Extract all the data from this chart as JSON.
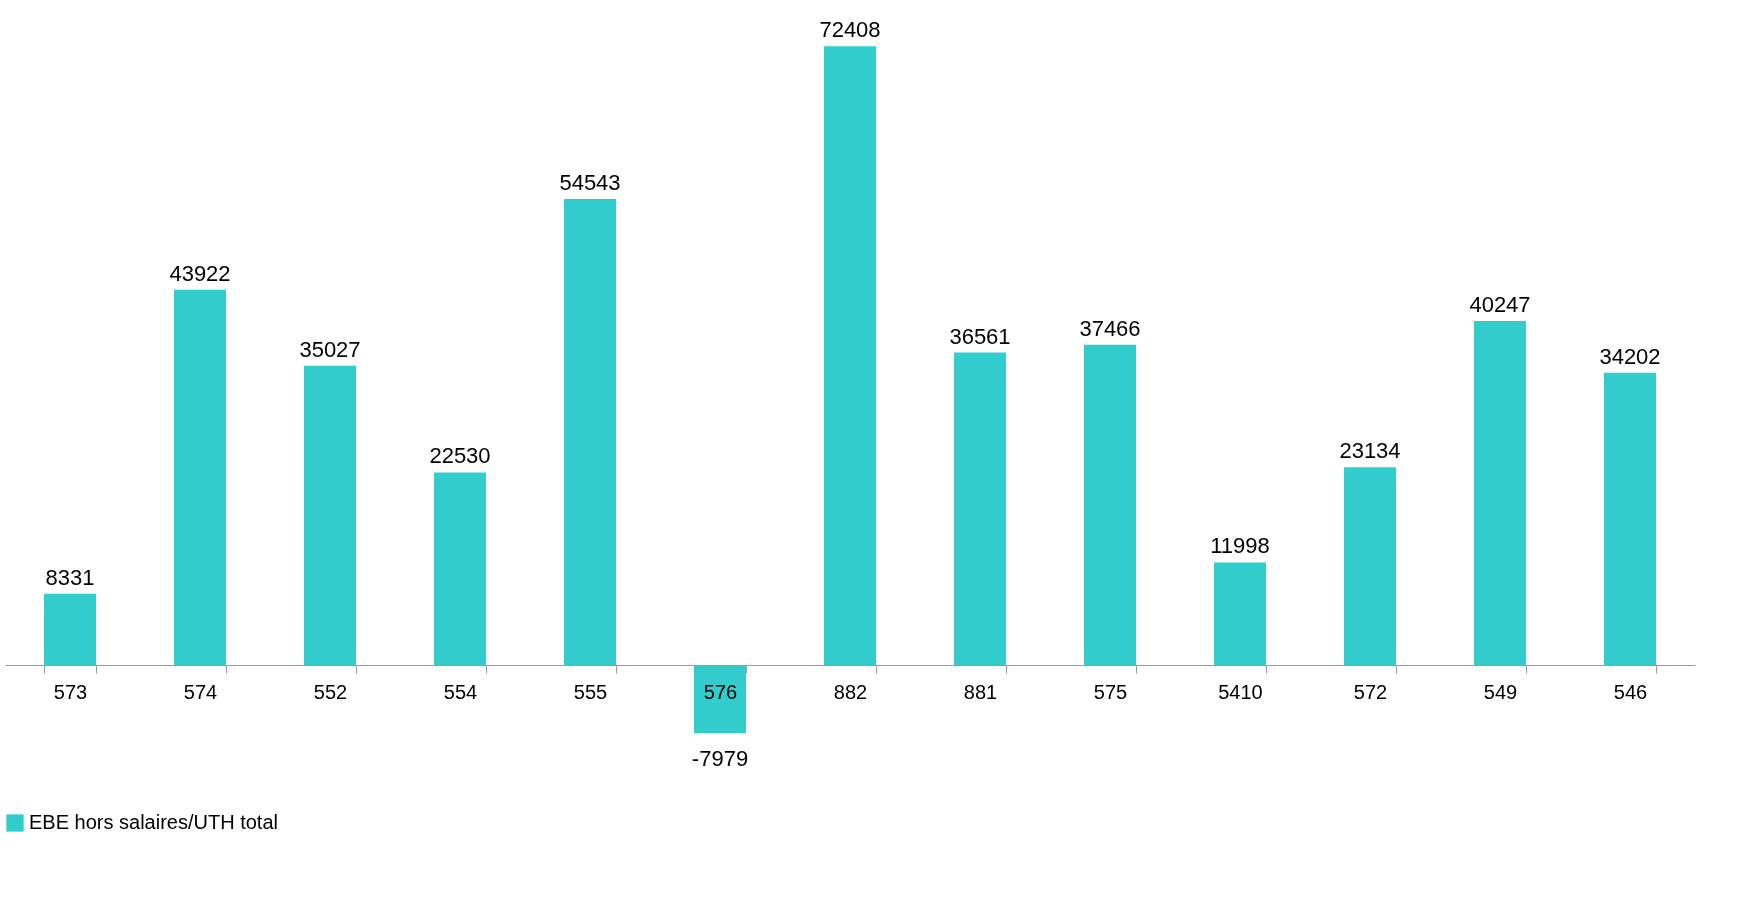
{
  "chart_data": {
    "type": "bar",
    "categories": [
      "573",
      "574",
      "552",
      "554",
      "555",
      "576",
      "882",
      "881",
      "575",
      "5410",
      "572",
      "549",
      "546"
    ],
    "series": [
      {
        "name": "EBE hors salaires/UTH total",
        "color": "#33cccc",
        "values": [
          8331,
          43922,
          35027,
          22530,
          54543,
          -7979,
          72408,
          36561,
          37466,
          11998,
          23134,
          40247,
          34202
        ]
      }
    ],
    "data_labels": true,
    "legend": "bottom",
    "grid": false
  }
}
